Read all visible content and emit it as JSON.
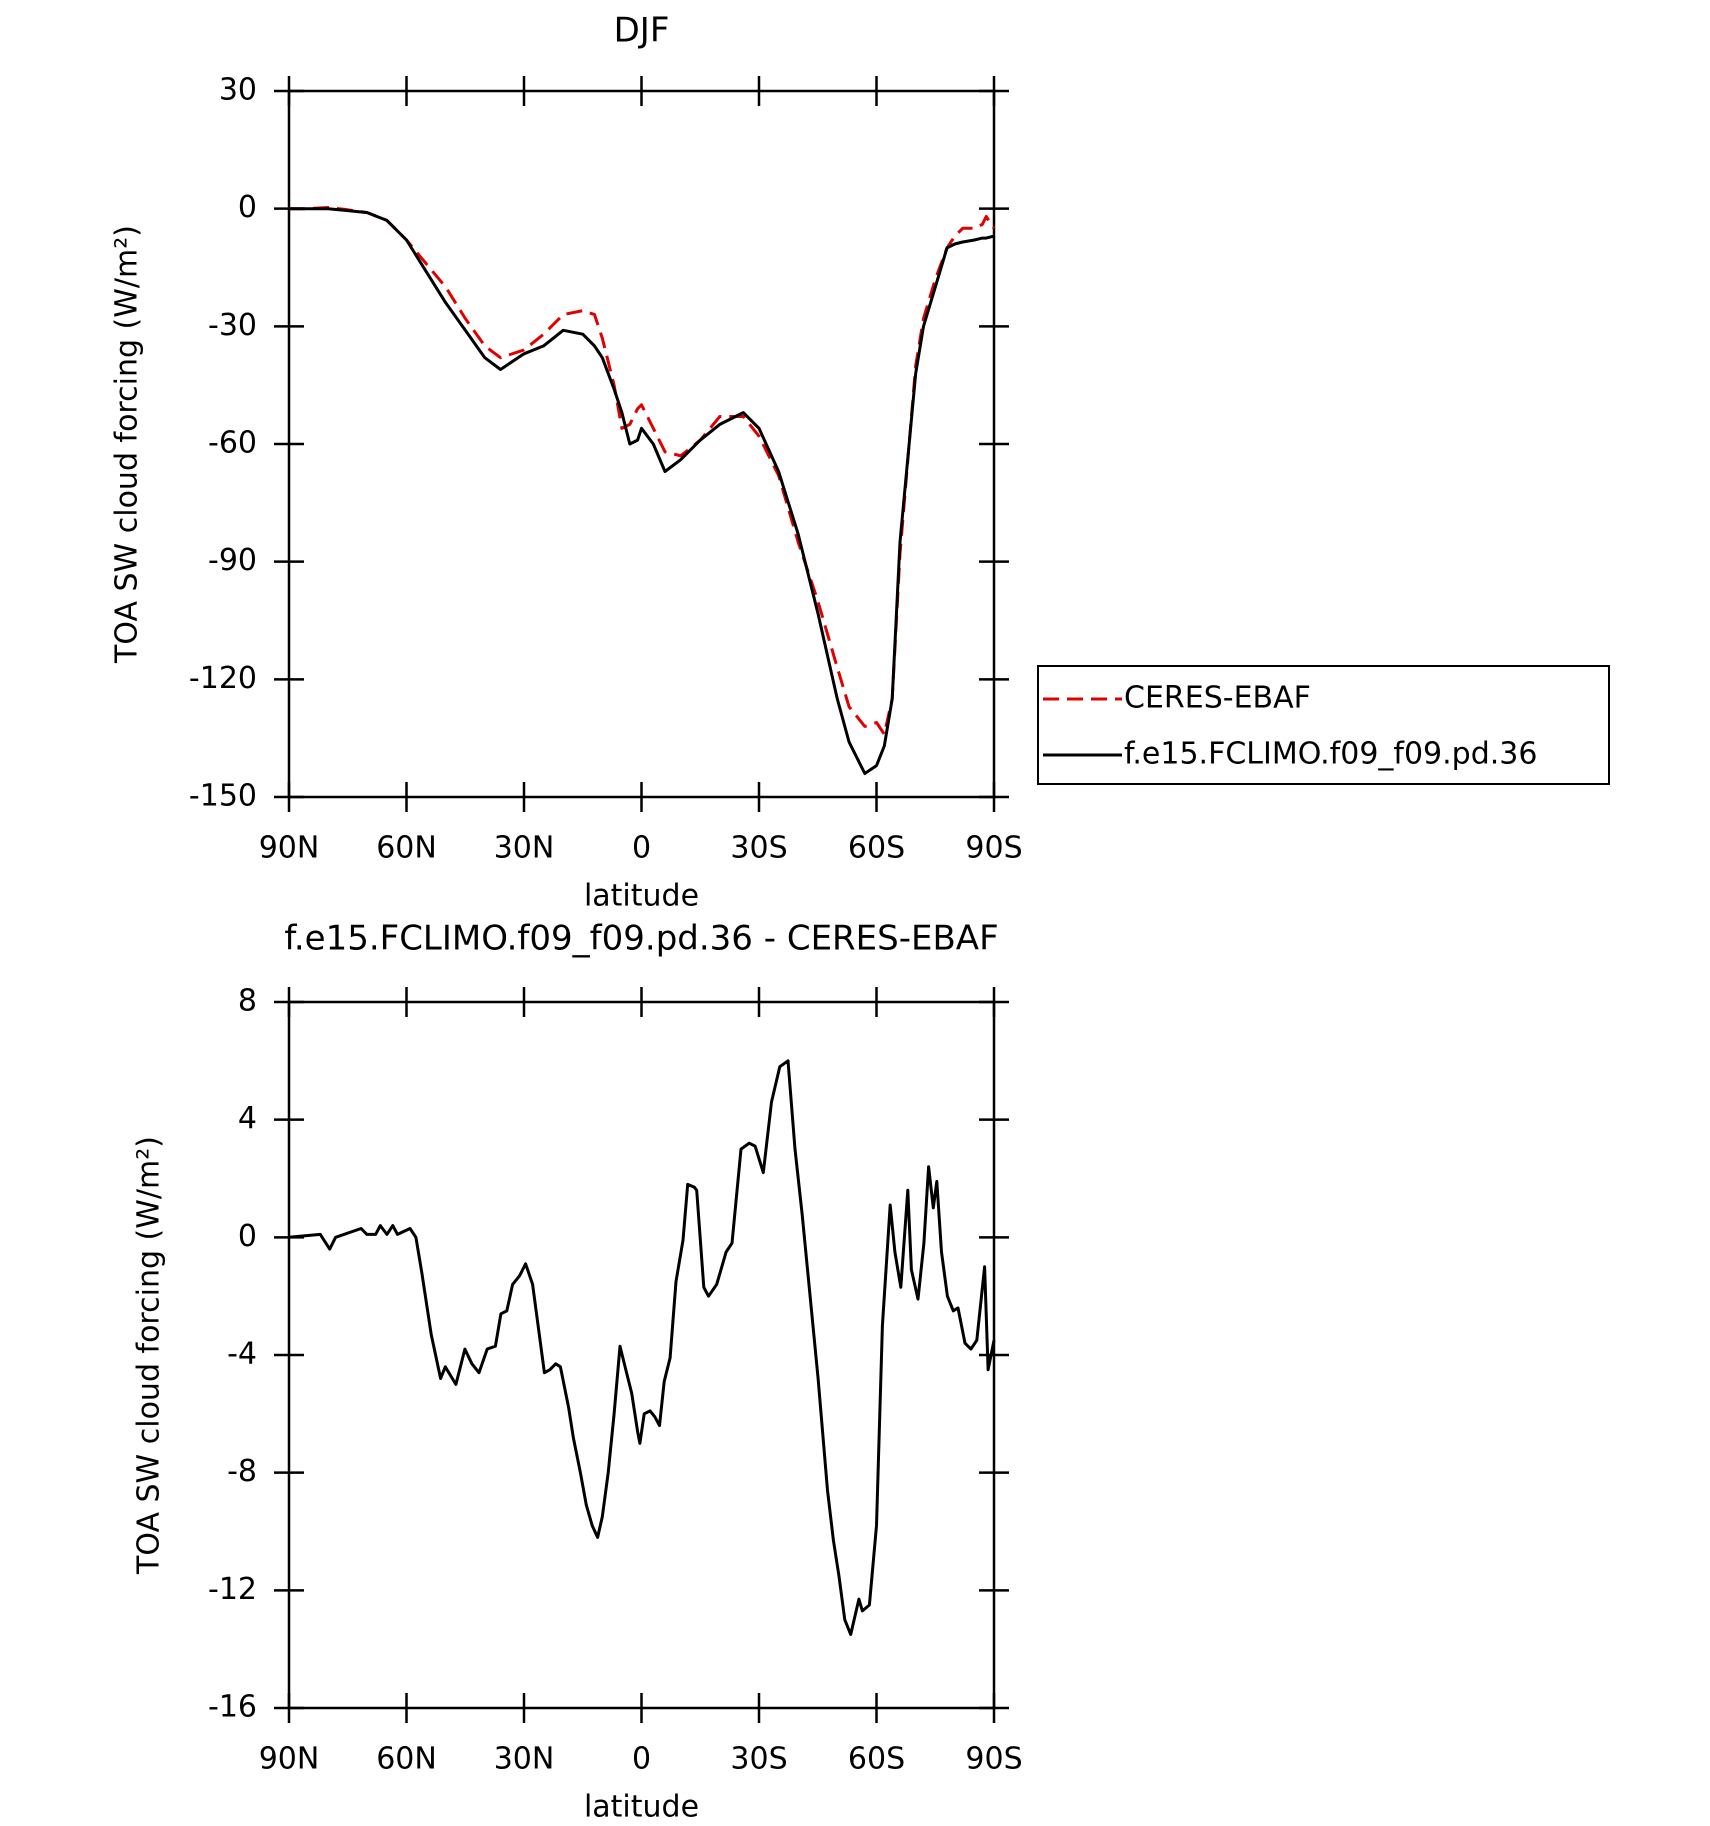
{
  "chart_data": [
    {
      "type": "line",
      "title": "DJF",
      "xlabel": "latitude",
      "ylabel": "TOA SW cloud forcing (W/m²)",
      "xlim": [
        90,
        -90
      ],
      "ylim": [
        30,
        -150
      ],
      "xticks": [
        {
          "value": 90,
          "label": "90N"
        },
        {
          "value": 60,
          "label": "60N"
        },
        {
          "value": 30,
          "label": "30N"
        },
        0,
        {
          "value": -30,
          "label": "30S"
        },
        {
          "value": -60,
          "label": "60S"
        },
        {
          "value": -90,
          "label": "90S"
        }
      ],
      "yticks": [
        30,
        0,
        -30,
        -60,
        -90,
        -120,
        -150
      ],
      "legend": "outside-right",
      "x": [
        90,
        85,
        80,
        75,
        70,
        65,
        60,
        55,
        50,
        45,
        40,
        36,
        30,
        25,
        20,
        15,
        12,
        10,
        7,
        5,
        3,
        1,
        0,
        -3,
        -6,
        -10,
        -15,
        -20,
        -26,
        -30,
        -35,
        -40,
        -45,
        -50,
        -53,
        -57,
        -60,
        -62,
        -64,
        -66,
        -70,
        -72,
        -75,
        -78,
        -80,
        -82,
        -85,
        -87,
        -88,
        -90
      ],
      "series": [
        {
          "name": "CERES-EBAF",
          "color": "#e00000",
          "dash": "dashed",
          "values": [
            0,
            0,
            0.3,
            -0.3,
            -1,
            -3,
            -8,
            -14,
            -20,
            -28,
            -35,
            -38,
            -36,
            -32,
            -27,
            -26,
            -27,
            -33,
            -45,
            -56,
            -55,
            -51,
            -50,
            -56,
            -62,
            -63,
            -59,
            -53,
            -53,
            -58,
            -68,
            -85,
            -100,
            -117,
            -127,
            -132,
            -131,
            -134,
            -125,
            -88,
            -40,
            -28,
            -18,
            -10,
            -7,
            -5,
            -5,
            -4,
            -2,
            -5
          ]
        },
        {
          "name": "f.e15.FCLIMO.f09_f09.pd.36",
          "color": "#000000",
          "dash": "solid",
          "values": [
            0,
            0,
            0,
            -0.5,
            -1,
            -3,
            -8,
            -16,
            -24,
            -31,
            -38,
            -41,
            -37,
            -35,
            -31,
            -32,
            -35,
            -38,
            -46,
            -52,
            -60,
            -59,
            -56,
            -60,
            -67,
            -64,
            -59,
            -55,
            -52,
            -56,
            -67,
            -83,
            -103,
            -125,
            -136,
            -144,
            -142,
            -137,
            -125,
            -85,
            -42,
            -30,
            -20,
            -10,
            -9,
            -8.5,
            -8,
            -7.5,
            -7.5,
            -7
          ]
        }
      ]
    },
    {
      "type": "line",
      "title": "f.e15.FCLIMO.f09_f09.pd.36 - CERES-EBAF",
      "xlabel": "latitude",
      "ylabel": "TOA SW cloud forcing (W/m²)",
      "xlim": [
        90,
        -90
      ],
      "ylim": [
        8,
        -16
      ],
      "xticks": [
        {
          "value": 90,
          "label": "90N"
        },
        {
          "value": 60,
          "label": "60N"
        },
        {
          "value": 30,
          "label": "30N"
        },
        0,
        {
          "value": -30,
          "label": "30S"
        },
        {
          "value": -60,
          "label": "60S"
        },
        {
          "value": -90,
          "label": "90S"
        }
      ],
      "yticks": [
        8,
        4,
        0,
        -4,
        -8,
        -12,
        -16
      ],
      "x": [
        90,
        82,
        79.6,
        78.1,
        71.6,
        70.1,
        67.9,
        66.7,
        65,
        63.5,
        62.3,
        59.1,
        57.6,
        56.1,
        53.7,
        51.3,
        50.1,
        47.4,
        45.1,
        43.3,
        41.5,
        39.4,
        37.3,
        35.9,
        34.4,
        32.9,
        31.1,
        29.6,
        27.8,
        24.8,
        23.4,
        21.9,
        20.7,
        18.6,
        17.4,
        15.6,
        14.1,
        12.6,
        11.2,
        10,
        8.5,
        7,
        5.5,
        4,
        2.5,
        1,
        0.4,
        -0.7,
        -2.2,
        -3.4,
        -4.6,
        -5.8,
        -7.3,
        -8.8,
        -10.6,
        -11.8,
        -13.5,
        -14.1,
        -15.9,
        -17.1,
        -19.2,
        -21.6,
        -23.1,
        -25.4,
        -27.5,
        -29,
        -31.1,
        -33.2,
        -35.3,
        -37.4,
        -39.2,
        -41,
        -45.1,
        -47.5,
        -49,
        -50.4,
        -51.9,
        -53.4,
        -55.5,
        -56.4,
        -58.2,
        -60,
        -61.5,
        -63.5,
        -64.7,
        -66.2,
        -68,
        -68.9,
        -70.6,
        -72.1,
        -73.3,
        -74.5,
        -75.4,
        -76.6,
        -78.1,
        -79.6,
        -80.8,
        -82.6,
        -84.1,
        -85.6,
        -87.6,
        -88.5,
        -90
      ],
      "series": [
        {
          "name": "f.e15.FCLIMO.f09_f09.pd.36 - CERES-EBAF",
          "color": "#000000",
          "dash": "solid",
          "values": [
            0,
            0.1,
            -0.4,
            0,
            0.3,
            0.1,
            0.1,
            0.4,
            0.1,
            0.4,
            0.1,
            0.3,
            0,
            -1.2,
            -3.3,
            -4.8,
            -4.4,
            -5,
            -3.8,
            -4.3,
            -4.6,
            -3.8,
            -3.7,
            -2.6,
            -2.5,
            -1.6,
            -1.3,
            -0.9,
            -1.6,
            -4.6,
            -4.5,
            -4.3,
            -4.4,
            -5.8,
            -6.8,
            -8,
            -9.1,
            -9.8,
            -10.2,
            -9.5,
            -8,
            -6,
            -3.7,
            -4.5,
            -5.3,
            -6.6,
            -7,
            -6,
            -5.9,
            -6.1,
            -6.4,
            -4.9,
            -4.1,
            -1.5,
            -0.1,
            1.8,
            1.7,
            1.6,
            -1.7,
            -2,
            -1.6,
            -0.5,
            -0.2,
            3,
            3.2,
            3.1,
            2.2,
            4.6,
            5.8,
            6,
            3,
            0.8,
            -4.8,
            -8.6,
            -10.3,
            -11.5,
            -13,
            -13.5,
            -12.3,
            -12.7,
            -12.5,
            -9.8,
            -3,
            1.1,
            -0.5,
            -1.7,
            1.6,
            -1.1,
            -2.1,
            -0.2,
            2.4,
            1,
            1.9,
            -0.5,
            -2,
            -2.5,
            -2.4,
            -3.6,
            -3.8,
            -3.5,
            -1,
            -4.5,
            -3.5
          ]
        }
      ]
    }
  ]
}
